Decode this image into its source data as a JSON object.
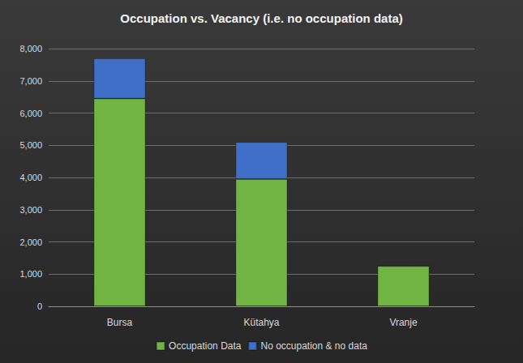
{
  "chart_data": {
    "type": "bar",
    "title": "Occupation vs. Vacancy (i.e. no occupation data)",
    "categories": [
      "Bursa",
      "Kütahya",
      "Vranje"
    ],
    "series": [
      {
        "name": "Occupation Data",
        "color": "#70b443",
        "values": [
          6450,
          3950,
          1250
        ]
      },
      {
        "name": "No occupation & no data",
        "color": "#3f6fc6",
        "values": [
          1250,
          1150,
          30
        ]
      }
    ],
    "ylim": [
      0,
      8000
    ],
    "yticks": [
      0,
      1000,
      2000,
      3000,
      4000,
      5000,
      6000,
      7000,
      8000
    ],
    "grid": true,
    "stacked": true,
    "legend": "bottom"
  }
}
